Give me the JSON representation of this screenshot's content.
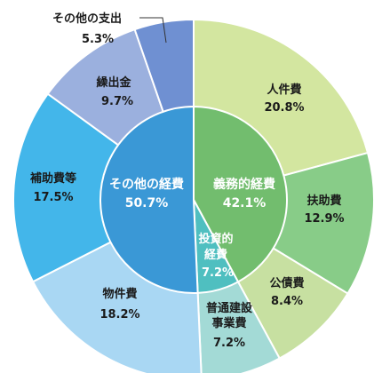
{
  "chart_data": {
    "type": "pie",
    "title": "",
    "outer_ring": [
      {
        "label": "人件費",
        "value": 20.8,
        "value_text": "20.8%",
        "color": "#d3e6a0"
      },
      {
        "label": "扶助費",
        "value": 12.9,
        "value_text": "12.9%",
        "color": "#88cc88"
      },
      {
        "label": "公債費",
        "value": 8.4,
        "value_text": "8.4%",
        "color": "#c7e0a1"
      },
      {
        "label": "普通建設事業費",
        "value": 7.2,
        "value_text": "7.2%",
        "color": "#a3dad6"
      },
      {
        "label": "物件費",
        "value": 18.2,
        "value_text": "18.2%",
        "color": "#a9d7f3"
      },
      {
        "label": "補助費等",
        "value": 17.5,
        "value_text": "17.5%",
        "color": "#43b6ea"
      },
      {
        "label": "繰出金",
        "value": 9.7,
        "value_text": "9.7%",
        "color": "#9bb0de"
      },
      {
        "label": "その他の支出",
        "value": 5.3,
        "value_text": "5.3%",
        "color": "#6f90d2"
      }
    ],
    "inner_ring": [
      {
        "label": "義務的経費",
        "value": 42.1,
        "value_text": "42.1%",
        "color": "#72bd6e"
      },
      {
        "label": "投資的経費",
        "value": 7.2,
        "value_text": "7.2%",
        "color": "#4fbfc0"
      },
      {
        "label": "その他の経費",
        "value": 50.7,
        "value_text": "50.7%",
        "color": "#3a98d6"
      }
    ]
  }
}
